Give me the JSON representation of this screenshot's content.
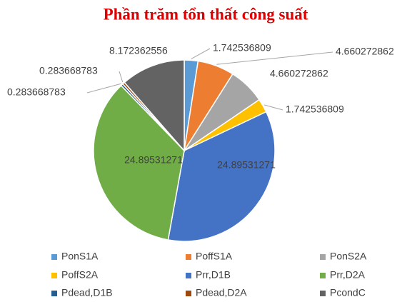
{
  "chart_data": {
    "type": "pie",
    "title": "Phần trăm tổn thất công suất",
    "categories": [
      "PonS1A",
      "PoffS1A",
      "PonS2A",
      "PoffS2A",
      "Prr,D1B",
      "Prr,D2A",
      "Pdead,D1B",
      "Pdead,D2A",
      "PcondC"
    ],
    "values": [
      1.742536809,
      4.660272862,
      4.660272862,
      1.742536809,
      24.89531271,
      24.89531271,
      0.283668783,
      0.283668783,
      8.172362556
    ],
    "colors": [
      "#5b9bd5",
      "#ed7d31",
      "#a5a5a5",
      "#ffc000",
      "#4472c4",
      "#70ad47",
      "#255e91",
      "#9e480e",
      "#636363"
    ],
    "legend": "bottom"
  }
}
